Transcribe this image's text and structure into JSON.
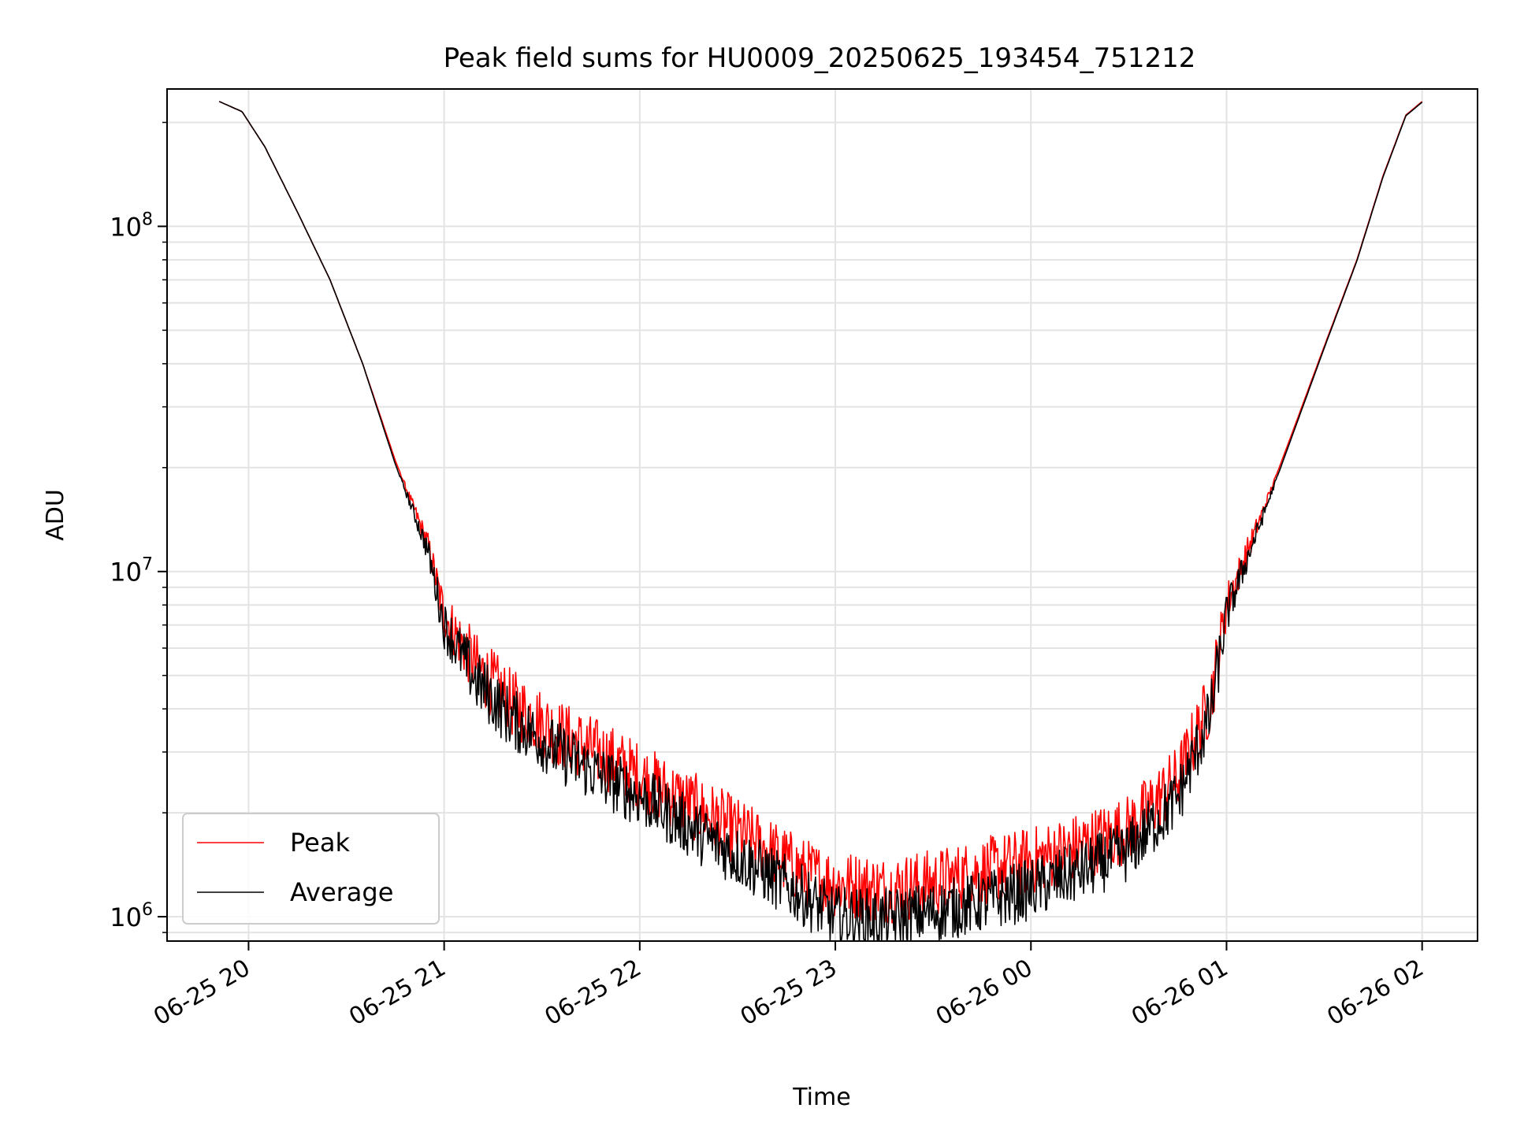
{
  "chart_data": {
    "type": "line",
    "title": "Peak field sums for HU0009_20250625_193454_751212",
    "xlabel": "Time",
    "ylabel": "ADU",
    "yscale": "log",
    "xlim": [
      "06-25 19:35",
      "06-26 02:17"
    ],
    "ylim": [
      850000,
      250000000
    ],
    "grid": true,
    "legend_position": "lower-left",
    "x_ticks": [
      {
        "t": "06-25 20:00",
        "label": "06-25 20"
      },
      {
        "t": "06-25 21:00",
        "label": "06-25 21"
      },
      {
        "t": "06-25 22:00",
        "label": "06-25 22"
      },
      {
        "t": "06-25 23:00",
        "label": "06-25 23"
      },
      {
        "t": "06-26 00:00",
        "label": "06-26 00"
      },
      {
        "t": "06-26 01:00",
        "label": "06-26 01"
      },
      {
        "t": "06-26 02:00",
        "label": "06-26 02"
      }
    ],
    "y_ticks": [
      {
        "value": 1000000,
        "base": "10",
        "exp": "6"
      },
      {
        "value": 10000000,
        "base": "10",
        "exp": "7"
      },
      {
        "value": 100000000,
        "base": "10",
        "exp": "8"
      }
    ],
    "series": [
      {
        "name": "Peak",
        "color": "#ff0000",
        "t": [
          "06-25 19:51",
          "06-25 19:58",
          "06-25 20:05",
          "06-25 20:15",
          "06-25 20:25",
          "06-25 20:35",
          "06-25 20:45",
          "06-25 20:55",
          "06-25 21:00",
          "06-25 21:10",
          "06-25 21:20",
          "06-25 21:35",
          "06-25 21:50",
          "06-25 22:05",
          "06-25 22:20",
          "06-25 22:35",
          "06-25 22:50",
          "06-25 23:00",
          "06-25 23:15",
          "06-25 23:30",
          "06-25 23:45",
          "06-26 00:00",
          "06-26 00:15",
          "06-26 00:30",
          "06-26 00:45",
          "06-26 00:55",
          "06-26 01:00",
          "06-26 01:10",
          "06-26 01:20",
          "06-26 01:30",
          "06-26 01:40",
          "06-26 01:48",
          "06-26 01:55",
          "06-26 02:00"
        ],
        "values": [
          230000000,
          215000000,
          170000000,
          110000000,
          70000000,
          40000000,
          21000000,
          12000000,
          7500000,
          5300000,
          4200000,
          3400000,
          2900000,
          2400000,
          2000000,
          1650000,
          1350000,
          1250000,
          1200000,
          1250000,
          1350000,
          1450000,
          1600000,
          1800000,
          2500000,
          4200000,
          8000000,
          14000000,
          25000000,
          45000000,
          80000000,
          140000000,
          210000000,
          230000000
        ],
        "noise": 0.1
      },
      {
        "name": "Average",
        "color": "#000000",
        "t": [
          "06-25 19:51",
          "06-25 19:58",
          "06-25 20:05",
          "06-25 20:15",
          "06-25 20:25",
          "06-25 20:35",
          "06-25 20:45",
          "06-25 20:55",
          "06-25 21:00",
          "06-25 21:10",
          "06-25 21:20",
          "06-25 21:35",
          "06-25 21:50",
          "06-25 22:05",
          "06-25 22:20",
          "06-25 22:35",
          "06-25 22:50",
          "06-25 23:00",
          "06-25 23:15",
          "06-25 23:30",
          "06-25 23:45",
          "06-26 00:00",
          "06-26 00:15",
          "06-26 00:30",
          "06-26 00:45",
          "06-26 00:55",
          "06-26 01:00",
          "06-26 01:10",
          "06-26 01:20",
          "06-26 01:30",
          "06-26 01:40",
          "06-26 01:48",
          "06-26 01:55",
          "06-26 02:00"
        ],
        "values": [
          230000000,
          215000000,
          170000000,
          110000000,
          70000000,
          40000000,
          20500000,
          11500000,
          7000000,
          4800000,
          3800000,
          3000000,
          2500000,
          2100000,
          1700000,
          1400000,
          1150000,
          1000000,
          980000,
          1030000,
          1100000,
          1200000,
          1350000,
          1550000,
          2200000,
          3800000,
          7500000,
          13500000,
          24500000,
          44500000,
          79500000,
          139000000,
          209000000,
          229000000
        ],
        "noise": 0.09
      }
    ]
  }
}
